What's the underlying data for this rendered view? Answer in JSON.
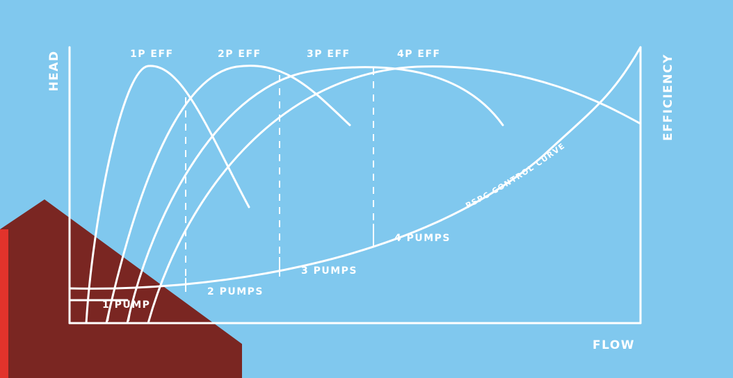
{
  "colors": {
    "background": "#80c8ee",
    "foreground": "#ffffff",
    "corner_shape": "#7a2622",
    "corner_edge": "#e2332b"
  },
  "axes": {
    "y_left_label": "HEAD",
    "y_right_label": "EFFICIENCY",
    "x_label": "FLOW"
  },
  "efficiency_curves": [
    "1P EFF",
    "2P EFF",
    "3P EFF",
    "4P EFF"
  ],
  "pump_labels": [
    "1 PUMP",
    "2 PUMPS",
    "3 PUMPS",
    "4 PUMPS"
  ],
  "control_curve_label": "PSPC CONTROL CURVE"
}
